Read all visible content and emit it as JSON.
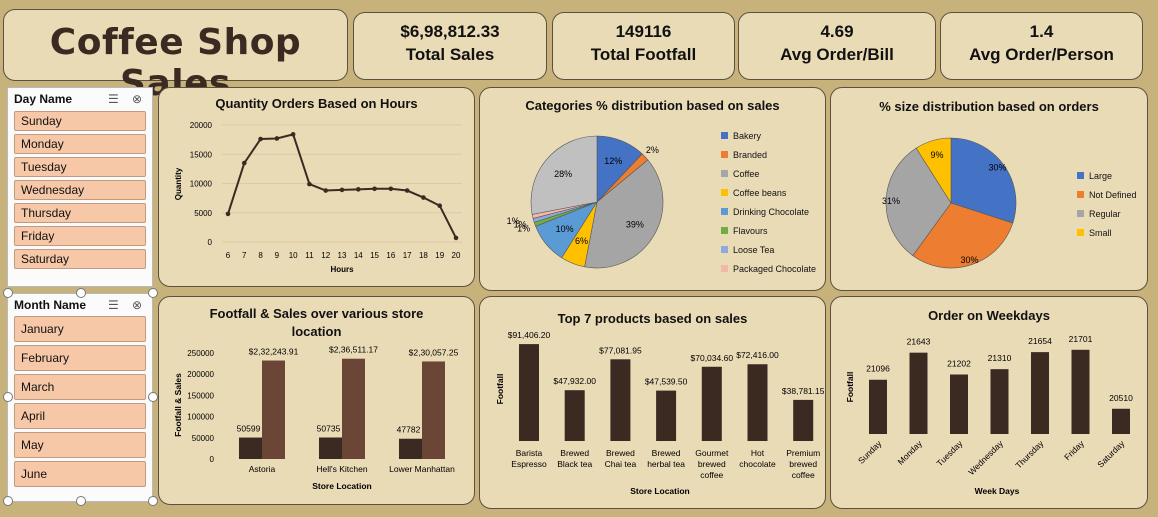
{
  "title": "Coffee Shop Sales",
  "kpis": [
    {
      "value": "$6,98,812.33",
      "label": "Total Sales"
    },
    {
      "value": "149116",
      "label": "Total Footfall"
    },
    {
      "value": "4.69",
      "label": "Avg Order/Bill"
    },
    {
      "value": "1.4",
      "label": "Avg Order/Person"
    }
  ],
  "day_slicer": {
    "title": "Day Name",
    "items": [
      "Sunday",
      "Monday",
      "Tuesday",
      "Wednesday",
      "Thursday",
      "Friday",
      "Saturday"
    ]
  },
  "month_slicer": {
    "title": "Month Name",
    "items": [
      "January",
      "February",
      "March",
      "April",
      "May",
      "June"
    ]
  },
  "icons": {
    "multi_select": "multi-select-icon",
    "clear_filter": "clear-filter-icon"
  },
  "chart_data": [
    {
      "id": "hours",
      "type": "line",
      "title": "Quantity Orders Based on Hours",
      "xlabel": "Hours",
      "ylabel": "Quantity",
      "x": [
        6,
        7,
        8,
        9,
        10,
        11,
        12,
        13,
        14,
        15,
        16,
        17,
        18,
        19,
        20
      ],
      "values": [
        4800,
        13500,
        17600,
        17700,
        18400,
        9900,
        8800,
        8900,
        9000,
        9100,
        9100,
        8800,
        7600,
        6200,
        700
      ],
      "ylim": [
        0,
        20000
      ],
      "yticks": [
        0,
        5000,
        10000,
        15000,
        20000
      ],
      "color": "#3a2a22"
    },
    {
      "id": "categories",
      "type": "pie",
      "title": "Categories % distribution based on sales",
      "labels": [
        "Bakery",
        "Branded",
        "Coffee",
        "Coffee beans",
        "Drinking Chocolate",
        "Flavours",
        "Loose Tea",
        "Packaged Chocolate"
      ],
      "values": [
        12,
        2,
        39,
        6,
        10,
        1,
        1,
        1
      ],
      "colors": [
        "#4472c4",
        "#ed7d31",
        "#a5a5a5",
        "#ffc000",
        "#5b9bd5",
        "#70ad47",
        "#8ea9db",
        "#f4b8a8"
      ],
      "extra": {
        "label": "28%",
        "value": 28,
        "color": "#c0c0c0"
      }
    },
    {
      "id": "sizes",
      "type": "pie",
      "title": "% size distribution based on orders",
      "labels": [
        "Large",
        "Not Defined",
        "Regular",
        "Small"
      ],
      "values": [
        30,
        30,
        31,
        9
      ],
      "colors": [
        "#4472c4",
        "#ed7d31",
        "#a5a5a5",
        "#ffc000"
      ]
    },
    {
      "id": "stores",
      "type": "bar",
      "title": "Footfall & Sales over various store location",
      "xlabel": "Store Location",
      "ylabel": "Footfall & Sales",
      "categories": [
        "Astoria",
        "Hell's Kitchen",
        "Lower Manhattan"
      ],
      "series": [
        {
          "values": [
            50599,
            50735,
            47782
          ],
          "labels": [
            "50599",
            "50735",
            "47782"
          ],
          "color": "#3a2a22"
        },
        {
          "values": [
            232243.91,
            236511.17,
            230057.25
          ],
          "labels": [
            "$2,32,243.91",
            "$2,36,511.17",
            "$2,30,057.25"
          ],
          "color": "#6b4637"
        }
      ],
      "ylim": [
        0,
        250000
      ],
      "yticks": [
        0,
        50000,
        100000,
        150000,
        200000,
        250000
      ]
    },
    {
      "id": "products",
      "type": "bar",
      "title": "Top 7 products based on sales",
      "xlabel": "Store Location",
      "ylabel": "Footfall",
      "categories": [
        [
          "Barista",
          "Espresso"
        ],
        [
          "Brewed",
          "Black tea"
        ],
        [
          "Brewed",
          "Chai tea"
        ],
        [
          "Brewed",
          "herbal tea"
        ],
        [
          "Gourmet",
          "brewed",
          "coffee"
        ],
        [
          "Hot",
          "chocolate"
        ],
        [
          "Premium",
          "brewed",
          "coffee"
        ]
      ],
      "values": [
        91406.2,
        47932.0,
        77081.95,
        47539.5,
        70034.6,
        72416.0,
        38781.15
      ],
      "labels": [
        "$91,406.20",
        "$47,932.00",
        "$77,081.95",
        "$47,539.50",
        "$70,034.60",
        "$72,416.00",
        "$38,781.15"
      ],
      "ylim": [
        0,
        100000
      ],
      "color": "#3a2a22"
    },
    {
      "id": "weekdays",
      "type": "bar",
      "title": "Order on Weekdays",
      "xlabel": "Week Days",
      "ylabel": "Footfall",
      "categories": [
        "Sunday",
        "Monday",
        "Tuesday",
        "Wednesday",
        "Thursday",
        "Friday",
        "Saturday"
      ],
      "values": [
        21096,
        21643,
        21202,
        21310,
        21654,
        21701,
        20510
      ],
      "labels": [
        "21096",
        "21643",
        "21202",
        "21310",
        "21654",
        "21701",
        "20510"
      ],
      "ylim": [
        20000,
        22000
      ],
      "color": "#3a2a22"
    }
  ]
}
